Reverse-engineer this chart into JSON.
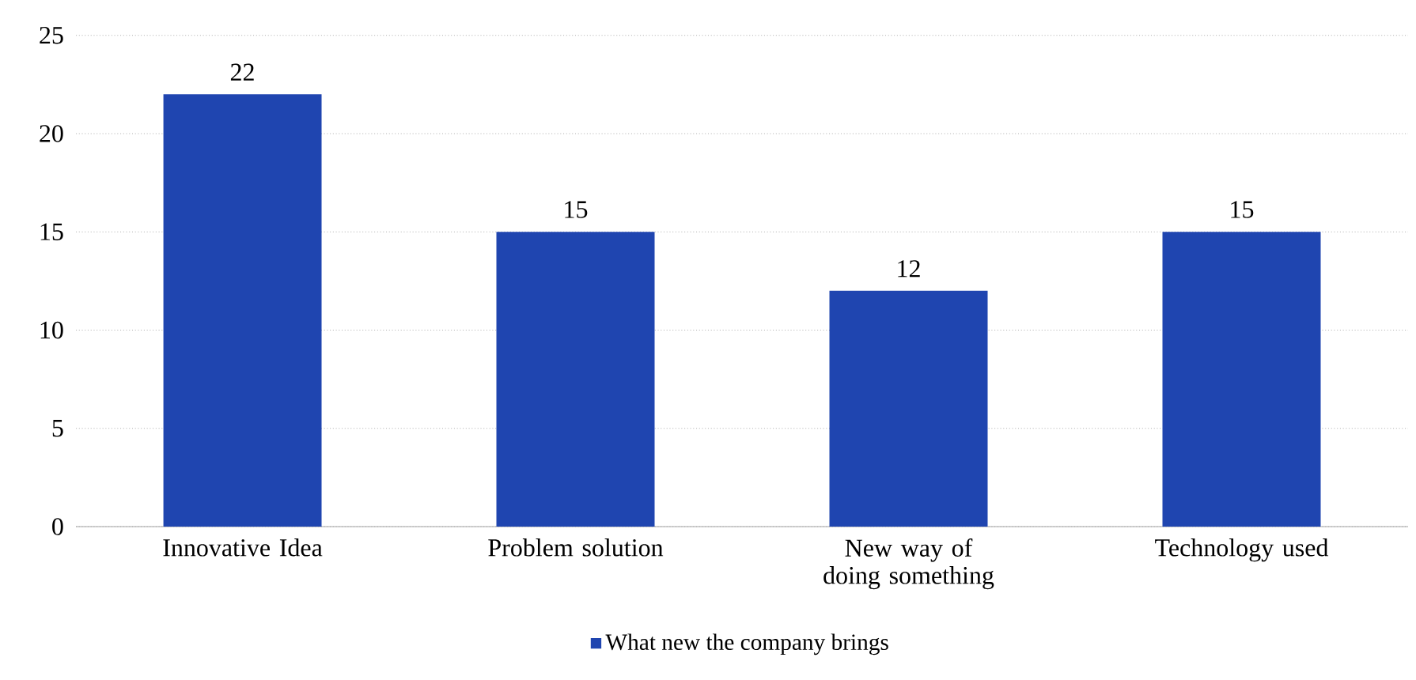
{
  "chart_data": {
    "type": "bar",
    "categories": [
      "Innovative Idea",
      "Problem solution",
      "New way of doing something",
      "Technology used"
    ],
    "series": [
      {
        "name": "What new the company brings",
        "color": "#1f45b0",
        "values": [
          22,
          15,
          12,
          15
        ]
      }
    ],
    "ylim": [
      0,
      25
    ],
    "yticks": [
      0,
      5,
      10,
      15,
      20,
      25
    ],
    "grid": "y",
    "legend": "bottom",
    "data_labels": true
  }
}
